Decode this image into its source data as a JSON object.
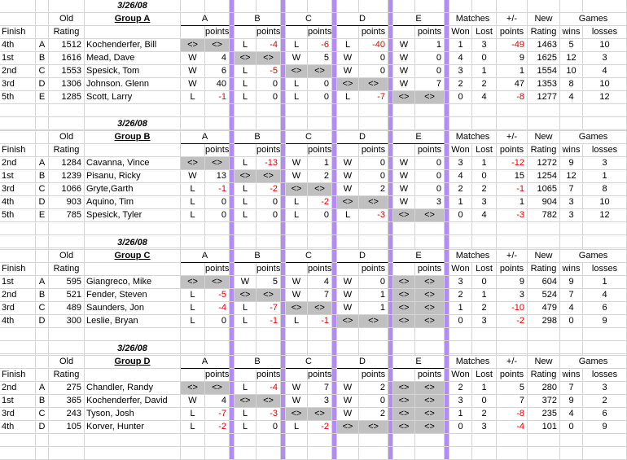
{
  "headers": {
    "old": "Old",
    "finish": "Finish",
    "rating": "Rating",
    "points": "points",
    "matches": "Matches",
    "plusminus": "+/-",
    "won": "Won",
    "lost": "Lost",
    "new": "New",
    "games": "Games",
    "wins": "wins",
    "losses": "losses",
    "cols": [
      "A",
      "B",
      "C",
      "D",
      "E"
    ]
  },
  "groups": [
    {
      "date": "3/26/08",
      "name": "Group A",
      "rows": [
        {
          "finish": "4th",
          "letter": "A",
          "old": "1512",
          "name": "Kochenderfer, Bill",
          "cells": [
            [
              "<>",
              "<>"
            ],
            [
              "L",
              "-4"
            ],
            [
              "L",
              "-6"
            ],
            [
              "L",
              "-40"
            ],
            [
              "W",
              "1"
            ]
          ],
          "won": "1",
          "lost": "3",
          "pm": "-49",
          "new": "1463",
          "wins": "5",
          "losses": "10"
        },
        {
          "finish": "1st",
          "letter": "B",
          "old": "1616",
          "name": "Mead, Dave",
          "cells": [
            [
              "W",
              "4"
            ],
            [
              "<>",
              "<>"
            ],
            [
              "W",
              "5"
            ],
            [
              "W",
              "0"
            ],
            [
              "W",
              "0"
            ]
          ],
          "won": "4",
          "lost": "0",
          "pm": "9",
          "new": "1625",
          "wins": "12",
          "losses": "3"
        },
        {
          "finish": "2nd",
          "letter": "C",
          "old": "1553",
          "name": "Spesick, Tom",
          "cells": [
            [
              "W",
              "6"
            ],
            [
              "L",
              "-5"
            ],
            [
              "<>",
              "<>"
            ],
            [
              "W",
              "0"
            ],
            [
              "W",
              "0"
            ]
          ],
          "won": "3",
          "lost": "1",
          "pm": "1",
          "new": "1554",
          "wins": "10",
          "losses": "4"
        },
        {
          "finish": "3rd",
          "letter": "D",
          "old": "1306",
          "name": "Johnson. Glenn",
          "cells": [
            [
              "W",
              "40"
            ],
            [
              "L",
              "0"
            ],
            [
              "L",
              "0"
            ],
            [
              "<>",
              "<>"
            ],
            [
              "W",
              "7"
            ]
          ],
          "won": "2",
          "lost": "2",
          "pm": "47",
          "new": "1353",
          "wins": "8",
          "losses": "10"
        },
        {
          "finish": "5th",
          "letter": "E",
          "old": "1285",
          "name": "Scott, Larry",
          "cells": [
            [
              "L",
              "-1"
            ],
            [
              "L",
              "0"
            ],
            [
              "L",
              "0"
            ],
            [
              "L",
              "-7"
            ],
            [
              "<>",
              "<>"
            ]
          ],
          "won": "0",
          "lost": "4",
          "pm": "-8",
          "new": "1277",
          "wins": "4",
          "losses": "12"
        }
      ]
    },
    {
      "date": "3/26/08",
      "name": "Group B",
      "rows": [
        {
          "finish": "2nd",
          "letter": "A",
          "old": "1284",
          "name": "Cavanna, Vince",
          "cells": [
            [
              "<>",
              "<>"
            ],
            [
              "L",
              "-13"
            ],
            [
              "W",
              "1"
            ],
            [
              "W",
              "0"
            ],
            [
              "W",
              "0"
            ]
          ],
          "won": "3",
          "lost": "1",
          "pm": "-12",
          "new": "1272",
          "wins": "9",
          "losses": "3"
        },
        {
          "finish": "1st",
          "letter": "B",
          "old": "1239",
          "name": "Pisanu, Ricky",
          "cells": [
            [
              "W",
              "13"
            ],
            [
              "<>",
              "<>"
            ],
            [
              "W",
              "2"
            ],
            [
              "W",
              "0"
            ],
            [
              "W",
              "0"
            ]
          ],
          "won": "4",
          "lost": "0",
          "pm": "15",
          "new": "1254",
          "wins": "12",
          "losses": "1"
        },
        {
          "finish": "3rd",
          "letter": "C",
          "old": "1066",
          "name": "Gryte,Garth",
          "cells": [
            [
              "L",
              "-1"
            ],
            [
              "L",
              "-2"
            ],
            [
              "<>",
              "<>"
            ],
            [
              "W",
              "2"
            ],
            [
              "W",
              "0"
            ]
          ],
          "won": "2",
          "lost": "2",
          "pm": "-1",
          "new": "1065",
          "wins": "7",
          "losses": "8"
        },
        {
          "finish": "4th",
          "letter": "D",
          "old": "903",
          "name": "Aquino, Tim",
          "cells": [
            [
              "L",
              "0"
            ],
            [
              "L",
              "0"
            ],
            [
              "L",
              "-2"
            ],
            [
              "<>",
              "<>"
            ],
            [
              "W",
              "3"
            ]
          ],
          "won": "1",
          "lost": "3",
          "pm": "1",
          "new": "904",
          "wins": "3",
          "losses": "10"
        },
        {
          "finish": "5th",
          "letter": "E",
          "old": "785",
          "name": "Spesick, Tyler",
          "cells": [
            [
              "L",
              "0"
            ],
            [
              "L",
              "0"
            ],
            [
              "L",
              "0"
            ],
            [
              "L",
              "-3"
            ],
            [
              "<>",
              "<>"
            ]
          ],
          "won": "0",
          "lost": "4",
          "pm": "-3",
          "new": "782",
          "wins": "3",
          "losses": "12"
        }
      ]
    },
    {
      "date": "3/26/08",
      "name": "Group C",
      "rows": [
        {
          "finish": "1st",
          "letter": "A",
          "old": "595",
          "name": "Giangreco, Mike",
          "cells": [
            [
              "<>",
              "<>"
            ],
            [
              "W",
              "5"
            ],
            [
              "W",
              "4"
            ],
            [
              "W",
              "0"
            ],
            [
              "<>",
              "<>"
            ]
          ],
          "won": "3",
          "lost": "0",
          "pm": "9",
          "new": "604",
          "wins": "9",
          "losses": "1"
        },
        {
          "finish": "2nd",
          "letter": "B",
          "old": "521",
          "name": "Fender, Steven",
          "cells": [
            [
              "L",
              "-5"
            ],
            [
              "<>",
              "<>"
            ],
            [
              "W",
              "7"
            ],
            [
              "W",
              "1"
            ],
            [
              "<>",
              "<>"
            ]
          ],
          "won": "2",
          "lost": "1",
          "pm": "3",
          "new": "524",
          "wins": "7",
          "losses": "4"
        },
        {
          "finish": "3rd",
          "letter": "C",
          "old": "489",
          "name": "Saunders, Jon",
          "cells": [
            [
              "L",
              "-4"
            ],
            [
              "L",
              "-7"
            ],
            [
              "<>",
              "<>"
            ],
            [
              "W",
              "1"
            ],
            [
              "<>",
              "<>"
            ]
          ],
          "won": "1",
          "lost": "2",
          "pm": "-10",
          "new": "479",
          "wins": "4",
          "losses": "6"
        },
        {
          "finish": "4th",
          "letter": "D",
          "old": "300",
          "name": "Leslie, Bryan",
          "cells": [
            [
              "L",
              "0"
            ],
            [
              "L",
              "-1"
            ],
            [
              "L",
              "-1"
            ],
            [
              "<>",
              "<>"
            ],
            [
              "<>",
              "<>"
            ]
          ],
          "won": "0",
          "lost": "3",
          "pm": "-2",
          "new": "298",
          "wins": "0",
          "losses": "9"
        }
      ]
    },
    {
      "date": "3/26/08",
      "name": "Group D",
      "rows": [
        {
          "finish": "2nd",
          "letter": "A",
          "old": "275",
          "name": "Chandler, Randy",
          "cells": [
            [
              "<>",
              "<>"
            ],
            [
              "L",
              "-4"
            ],
            [
              "W",
              "7"
            ],
            [
              "W",
              "2"
            ],
            [
              "<>",
              "<>"
            ]
          ],
          "won": "2",
          "lost": "1",
          "pm": "5",
          "new": "280",
          "wins": "7",
          "losses": "3"
        },
        {
          "finish": "1st",
          "letter": "B",
          "old": "365",
          "name": "Kochenderfer, David",
          "cells": [
            [
              "W",
              "4"
            ],
            [
              "<>",
              "<>"
            ],
            [
              "W",
              "3"
            ],
            [
              "W",
              "0"
            ],
            [
              "<>",
              "<>"
            ]
          ],
          "won": "3",
          "lost": "0",
          "pm": "7",
          "new": "372",
          "wins": "9",
          "losses": "2"
        },
        {
          "finish": "3rd",
          "letter": "C",
          "old": "243",
          "name": "Tyson, Josh",
          "cells": [
            [
              "L",
              "-7"
            ],
            [
              "L",
              "-3"
            ],
            [
              "<>",
              "<>"
            ],
            [
              "W",
              "2"
            ],
            [
              "<>",
              "<>"
            ]
          ],
          "won": "1",
          "lost": "2",
          "pm": "-8",
          "new": "235",
          "wins": "4",
          "losses": "6"
        },
        {
          "finish": "4th",
          "letter": "D",
          "old": "105",
          "name": "Korver, Hunter",
          "cells": [
            [
              "L",
              "-2"
            ],
            [
              "L",
              "0"
            ],
            [
              "L",
              "-2"
            ],
            [
              "<>",
              "<>"
            ],
            [
              "<>",
              "<>"
            ]
          ],
          "won": "0",
          "lost": "3",
          "pm": "-4",
          "new": "101",
          "wins": "0",
          "losses": "9"
        }
      ]
    }
  ]
}
